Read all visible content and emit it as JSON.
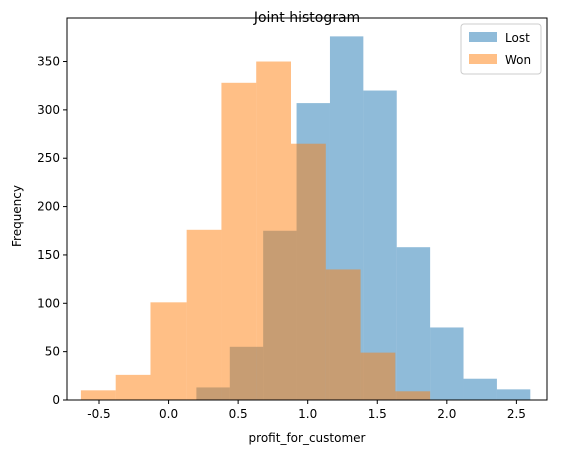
{
  "chart_data": {
    "type": "histogram",
    "title": "Joint histogram",
    "xlabel": "profit_for_customer",
    "ylabel": "Frequency",
    "xlim": [
      -0.73,
      2.72
    ],
    "ylim": [
      0,
      395
    ],
    "xticks": [
      "-0.5",
      "0.0",
      "0.5",
      "1.0",
      "1.5",
      "2.0",
      "2.5"
    ],
    "xtick_values": [
      -0.5,
      0.0,
      0.5,
      1.0,
      1.5,
      2.0,
      2.5
    ],
    "yticks": [
      "0",
      "50",
      "100",
      "150",
      "200",
      "250",
      "300",
      "350"
    ],
    "ytick_values": [
      0,
      50,
      100,
      150,
      200,
      250,
      300,
      350
    ],
    "legend_position": "top-right",
    "series": [
      {
        "name": "Lost",
        "color": "#1f77b4",
        "alpha": 0.5,
        "bins": [
          {
            "x0": 0.2,
            "x1": 0.44,
            "count": 13
          },
          {
            "x0": 0.44,
            "x1": 0.68,
            "count": 55
          },
          {
            "x0": 0.68,
            "x1": 0.92,
            "count": 175
          },
          {
            "x0": 0.92,
            "x1": 1.16,
            "count": 307
          },
          {
            "x0": 1.16,
            "x1": 1.4,
            "count": 376
          },
          {
            "x0": 1.4,
            "x1": 1.64,
            "count": 320
          },
          {
            "x0": 1.64,
            "x1": 1.88,
            "count": 158
          },
          {
            "x0": 1.88,
            "x1": 2.12,
            "count": 75
          },
          {
            "x0": 2.12,
            "x1": 2.36,
            "count": 22
          },
          {
            "x0": 2.36,
            "x1": 2.6,
            "count": 11
          }
        ]
      },
      {
        "name": "Won",
        "color": "#ff7f0e",
        "alpha": 0.5,
        "bins": [
          {
            "x0": -0.63,
            "x1": -0.38,
            "count": 10
          },
          {
            "x0": -0.38,
            "x1": -0.13,
            "count": 26
          },
          {
            "x0": -0.13,
            "x1": 0.13,
            "count": 101
          },
          {
            "x0": 0.13,
            "x1": 0.38,
            "count": 176
          },
          {
            "x0": 0.38,
            "x1": 0.63,
            "count": 328
          },
          {
            "x0": 0.63,
            "x1": 0.88,
            "count": 350
          },
          {
            "x0": 0.88,
            "x1": 1.13,
            "count": 265
          },
          {
            "x0": 1.13,
            "x1": 1.38,
            "count": 135
          },
          {
            "x0": 1.38,
            "x1": 1.63,
            "count": 49
          },
          {
            "x0": 1.63,
            "x1": 1.88,
            "count": 9
          }
        ]
      }
    ]
  }
}
